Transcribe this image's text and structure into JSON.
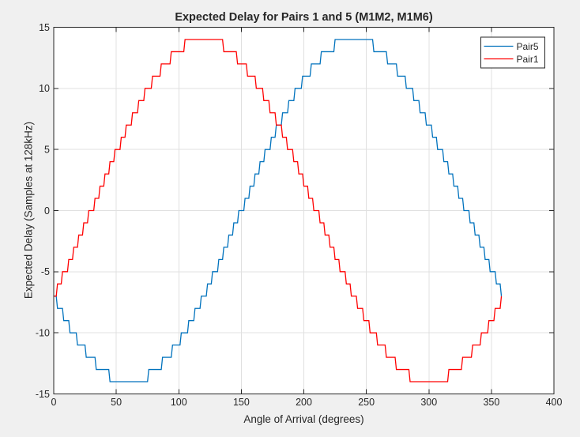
{
  "window": {
    "type": "matlab-figure-canvas"
  },
  "chart_data": {
    "type": "line",
    "title": "Expected Delay for Pairs 1 and 5 (M1M2, M1M6)",
    "xlabel": "Angle of Arrival (degrees)",
    "ylabel": "Expected Delay (Samples at 128kHz)",
    "xlim": [
      0,
      400
    ],
    "ylim": [
      -15,
      15
    ],
    "xticks": [
      0,
      50,
      100,
      150,
      200,
      250,
      300,
      350,
      400
    ],
    "yticks": [
      -15,
      -10,
      -5,
      0,
      5,
      10,
      15
    ],
    "grid": true,
    "box": true,
    "tick_direction": "in",
    "legend": {
      "position": "northeast",
      "entries": [
        "Pair5",
        "Pair1"
      ]
    },
    "x_sampling": {
      "start_deg": 0,
      "end_deg": 358,
      "step_deg": 1
    },
    "quantization": "each curve is round(14*sin(angle - phase_deg)) in integer samples, producing the staircase shape",
    "series": [
      {
        "name": "Pair5",
        "color": "#0072BD",
        "amplitude_samples": 14,
        "phase_deg": 150,
        "start_value": -7,
        "min_value": -14,
        "max_value": 14,
        "min_plateau_deg": [
          45,
          75
        ],
        "max_plateau_deg": [
          225,
          255
        ],
        "end_value": -7
      },
      {
        "name": "Pair1",
        "color": "#FF0000",
        "amplitude_samples": 14,
        "phase_deg": 30,
        "start_value": -7,
        "min_value": -14,
        "max_value": 14,
        "min_plateau_deg": [
          285,
          315
        ],
        "max_plateau_deg": [
          105,
          135
        ],
        "end_value": -7
      }
    ],
    "quantized_sine_cycle_rle": [
      [
        0,
        3
      ],
      [
        1,
        4
      ],
      [
        2,
        4
      ],
      [
        3,
        4
      ],
      [
        4,
        4
      ],
      [
        5,
        5
      ],
      [
        6,
        4
      ],
      [
        7,
        5
      ],
      [
        8,
        5
      ],
      [
        9,
        5
      ],
      [
        10,
        6
      ],
      [
        11,
        7
      ],
      [
        12,
        8
      ],
      [
        13,
        11
      ],
      [
        14,
        31
      ],
      [
        13,
        11
      ],
      [
        12,
        8
      ],
      [
        11,
        7
      ],
      [
        10,
        6
      ],
      [
        9,
        5
      ],
      [
        8,
        5
      ],
      [
        7,
        5
      ],
      [
        6,
        4
      ],
      [
        5,
        5
      ],
      [
        4,
        4
      ],
      [
        3,
        4
      ],
      [
        2,
        4
      ],
      [
        1,
        4
      ],
      [
        0,
        5
      ],
      [
        -1,
        4
      ],
      [
        -2,
        4
      ],
      [
        -3,
        4
      ],
      [
        -4,
        4
      ],
      [
        -5,
        5
      ],
      [
        -6,
        4
      ],
      [
        -7,
        5
      ],
      [
        -8,
        5
      ],
      [
        -9,
        5
      ],
      [
        -10,
        6
      ],
      [
        -11,
        7
      ],
      [
        -12,
        8
      ],
      [
        -13,
        11
      ],
      [
        -14,
        31
      ],
      [
        -13,
        11
      ],
      [
        -12,
        8
      ],
      [
        -11,
        7
      ],
      [
        -10,
        6
      ],
      [
        -9,
        5
      ],
      [
        -8,
        5
      ],
      [
        -7,
        5
      ],
      [
        -6,
        4
      ],
      [
        -5,
        5
      ],
      [
        -4,
        4
      ],
      [
        -3,
        4
      ],
      [
        -2,
        4
      ],
      [
        -1,
        4
      ],
      [
        0,
        2
      ]
    ],
    "rle_note": "run-length encoded values of round(14*sin(theta)) for theta = 0..359 deg; series value at x = cycle[(x - phase_deg + 360) mod 360]",
    "style": {
      "figure_bg": "#f0f0f0",
      "plot_bg": "#ffffff",
      "axis_color": "#262626",
      "grid_color": "#e0e0e0",
      "text_color": "#262626",
      "legend_bg": "#ffffff",
      "legend_border": "#262626"
    }
  }
}
